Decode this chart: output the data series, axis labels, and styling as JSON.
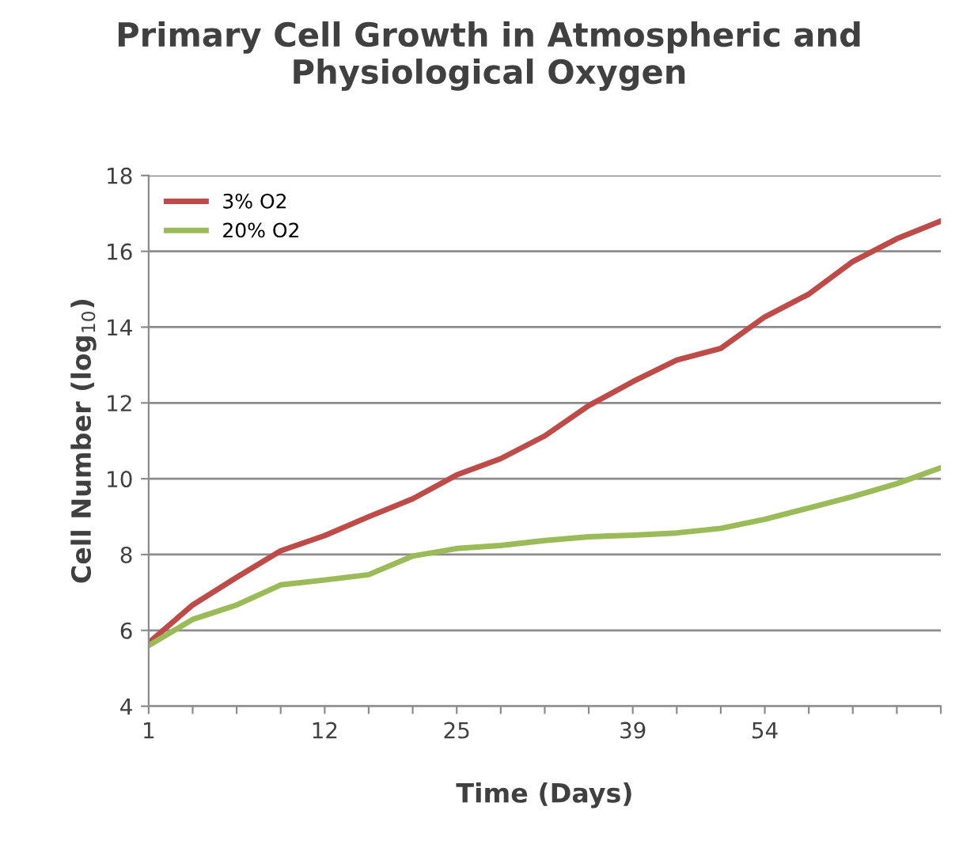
{
  "chart_data": {
    "type": "line",
    "title": "Primary Cell Growth in Atmospheric and Physiological Oxygen",
    "xlabel": "Time (Days)",
    "ylabel": "Cell Number (log$_{10}$)",
    "categories": [
      "1",
      null,
      null,
      null,
      "12",
      null,
      null,
      "25",
      null,
      null,
      null,
      "39",
      null,
      null,
      "54",
      null,
      null,
      null,
      null
    ],
    "series": [
      {
        "name": "3% O2",
        "color": "#be4b48",
        "values": [
          5.67,
          6.67,
          7.4,
          8.1,
          8.5,
          9.0,
          9.47,
          10.1,
          10.53,
          11.13,
          11.93,
          12.56,
          13.13,
          13.44,
          14.27,
          14.87,
          15.73,
          16.33,
          16.8
        ]
      },
      {
        "name": "20% O2",
        "color": "#9bbb59",
        "values": [
          5.6,
          6.29,
          6.67,
          7.2,
          7.33,
          7.47,
          7.96,
          8.16,
          8.24,
          8.37,
          8.47,
          8.51,
          8.57,
          8.69,
          8.93,
          9.23,
          9.53,
          9.87,
          10.29
        ]
      }
    ],
    "ylim": [
      4,
      18
    ],
    "yticks": [
      4,
      6,
      8,
      10,
      12,
      14,
      16,
      18
    ],
    "grid": "y",
    "legend": "top left",
    "marker": "none",
    "line_style": "solid"
  }
}
